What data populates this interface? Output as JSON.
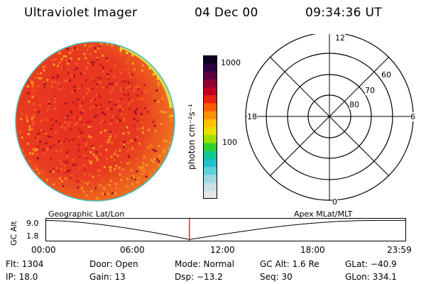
{
  "header": {
    "instrument": "Ultraviolet Imager",
    "date": "04 Dec 00",
    "time": "09:34:36 UT"
  },
  "colorbar": {
    "unit_label": "photon cm⁻²s⁻¹",
    "tick_labels": [
      "1000",
      "100"
    ],
    "tick_values": [
      1000,
      100
    ],
    "range": [
      20,
      1500
    ],
    "colors": [
      "#e6e6e6",
      "#c8e0e6",
      "#9fd8e0",
      "#5fcfd8",
      "#22c0c8",
      "#10c890",
      "#30d030",
      "#a0e000",
      "#e8e000",
      "#ffc000",
      "#ff9000",
      "#ff5a00",
      "#e82010",
      "#c00020",
      "#900030",
      "#5a0040",
      "#2a0040",
      "#0a0020"
    ]
  },
  "globe": {
    "dominant_color": "#e83520",
    "secondary_color": "#f09020",
    "edge_colors": [
      "#f0e020",
      "#a0d040",
      "#40c0c0"
    ]
  },
  "polar": {
    "mlt_labels": {
      "top": "12",
      "left": "18",
      "right": "6",
      "bottom": "0"
    },
    "lat_labels": [
      "60",
      "70",
      "80"
    ]
  },
  "timeline": {
    "left_title": "Geographic Lat/Lon",
    "right_title": "Apex MLat/MLT",
    "y_label": "GC Alt",
    "y_ticks": [
      "9.0",
      "1.8"
    ],
    "x_ticks": [
      "00:00",
      "06:00",
      "12:00",
      "18:00",
      "23:59"
    ],
    "current_time_marker_hours": 9.58,
    "marker_color": "#cc0000"
  },
  "info": {
    "flt": "Flt: 1304",
    "door": "Door: Open",
    "mode": "Mode: Normal",
    "gc_alt": "GC Alt: 1.6 Re",
    "glat": "GLat: −40.9",
    "ip": "IP: 18.0",
    "gain": "Gain: 13",
    "dsp": "Dsp:  −13.2",
    "seq": "Seq: 30",
    "glon": "GLon: 334.1"
  }
}
